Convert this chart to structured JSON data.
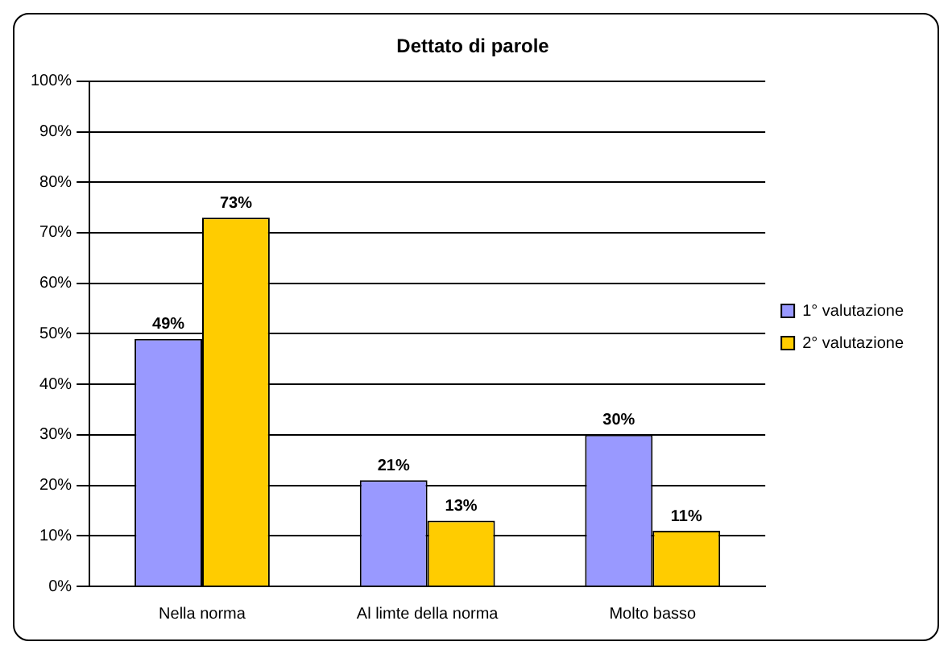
{
  "chart_data": {
    "type": "bar",
    "title": "Dettato di parole",
    "categories": [
      "Nella norma",
      "Al limte della norma",
      "Molto basso"
    ],
    "series": [
      {
        "name": "1° valutazione",
        "color": "#9999ff",
        "values": [
          49,
          21,
          30
        ],
        "value_labels": [
          "49%",
          "21%",
          "30%"
        ]
      },
      {
        "name": "2° valutazione",
        "color": "#ffcc00",
        "values": [
          73,
          13,
          11
        ],
        "value_labels": [
          "73%",
          "13%",
          "11%"
        ]
      }
    ],
    "ylim": [
      0,
      100
    ],
    "yticks": [
      {
        "value": 0,
        "label": "0%"
      },
      {
        "value": 10,
        "label": "10%"
      },
      {
        "value": 20,
        "label": "20%"
      },
      {
        "value": 30,
        "label": "30%"
      },
      {
        "value": 40,
        "label": "40%"
      },
      {
        "value": 50,
        "label": "50%"
      },
      {
        "value": 60,
        "label": "60%"
      },
      {
        "value": 70,
        "label": "70%"
      },
      {
        "value": 80,
        "label": "80%"
      },
      {
        "value": 90,
        "label": "90%"
      },
      {
        "value": 100,
        "label": "100%"
      }
    ],
    "grid": "y",
    "legend": "right"
  }
}
